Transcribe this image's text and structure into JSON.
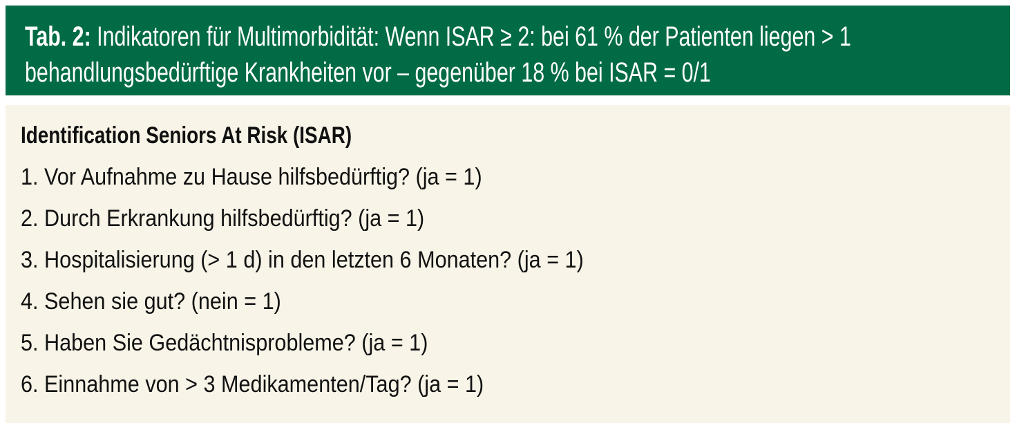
{
  "caption": {
    "label": "Tab. 2:",
    "line1": "Indikatoren für Multimorbidität: Wenn ISAR ≥ 2: bei 61 % der Patienten liegen > 1",
    "line2": "behandlungsbedürftige Krankheiten vor – gegenüber 18 % bei ISAR = 0/1"
  },
  "table": {
    "heading": "Identification Seniors At Risk (ISAR)",
    "items": [
      "1. Vor Aufnahme zu Hause hilfsbedürftig? (ja = 1)",
      "2. Durch Erkrankung hilfsbedürftig? (ja = 1)",
      "3. Hospitalisierung (> 1 d) in den letzten 6 Monaten? (ja = 1)",
      "4. Sehen sie gut? (nein = 1)",
      "5. Haben Sie Gedächtnisprobleme? (ja = 1)",
      "6. Einnahme von > 3 Medikamenten/Tag? (ja = 1)"
    ]
  },
  "colors": {
    "header_bg": "#006b45",
    "body_bg": "#f8f4e8"
  }
}
